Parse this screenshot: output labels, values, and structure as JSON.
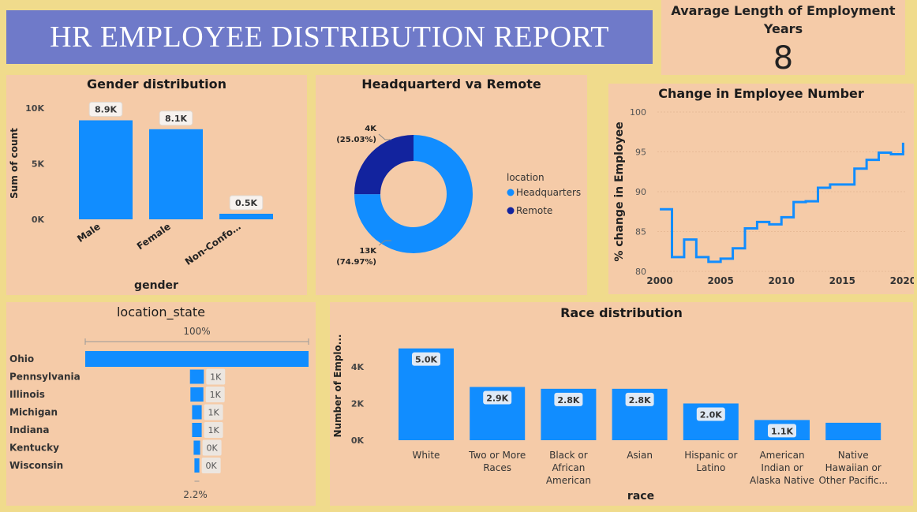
{
  "report_title": "HR EMPLOYEE DISTRIBUTION REPORT",
  "kpi": {
    "label": "Avarage Length of Employment Years",
    "value": "8"
  },
  "colors": {
    "background": "#f0db8c",
    "panel": "#f5cba8",
    "banner": "#6f7ac9",
    "bar": "#118dff",
    "remote": "#12239e"
  },
  "chart_data": [
    {
      "id": "gender",
      "type": "bar",
      "title": "Gender distribution",
      "xlabel": "gender",
      "ylabel": "Sum of count",
      "categories": [
        "Male",
        "Female",
        "Non-Confo…"
      ],
      "values": [
        8900,
        8100,
        500
      ],
      "data_labels": [
        "8.9K",
        "8.1K",
        "0.5K"
      ],
      "ylim": [
        0,
        10000
      ],
      "yticks": [
        0,
        5000,
        10000
      ],
      "ytick_labels": [
        "0K",
        "5K",
        "10K"
      ]
    },
    {
      "id": "location",
      "type": "pie",
      "variant": "donut",
      "title": "Headquarterd va Remote",
      "legend_title": "location",
      "legend_position": "right",
      "slices": [
        {
          "name": "Headquarters",
          "value": 74.97,
          "label": "13K",
          "pct_label": "(74.97%)",
          "color": "#118dff"
        },
        {
          "name": "Remote",
          "value": 25.03,
          "label": "4K",
          "pct_label": "(25.03%)",
          "color": "#12239e"
        }
      ]
    },
    {
      "id": "employee-change",
      "type": "line",
      "variant": "step",
      "title": "Change in Employee Number",
      "xlabel": "",
      "ylabel": "% change in Employee",
      "x": [
        2000,
        2001,
        2002,
        2003,
        2004,
        2005,
        2006,
        2007,
        2008,
        2009,
        2010,
        2011,
        2012,
        2013,
        2014,
        2015,
        2016,
        2017,
        2018,
        2019,
        2020
      ],
      "values": [
        87.8,
        81.8,
        84,
        81.8,
        81.2,
        81.6,
        82.9,
        85.4,
        86.2,
        85.9,
        86.8,
        88.7,
        88.8,
        90.5,
        90.9,
        90.9,
        92.9,
        94,
        94.9,
        94.7,
        96
      ],
      "xlim": [
        1999.8,
        2020.3
      ],
      "ylim": [
        80,
        100
      ],
      "xticks": [
        2000,
        2005,
        2010,
        2015,
        2020
      ],
      "yticks": [
        80,
        85,
        90,
        95,
        100
      ],
      "grid": true
    },
    {
      "id": "state",
      "type": "bar",
      "orientation": "horizontal",
      "variant": "funnel",
      "title": "location_state",
      "categories": [
        "Ohio",
        "Pennsylvania",
        "Illinois",
        "Michigan",
        "Indiana",
        "Kentucky",
        "Wisconsin"
      ],
      "values": [
        100,
        6.2,
        5.8,
        4.3,
        4.3,
        2.9,
        2.2
      ],
      "data_labels": [
        "",
        "1K",
        "1K",
        "1K",
        "1K",
        "0K",
        "0K"
      ],
      "top_label": "100%",
      "bottom_label": "2.2%"
    },
    {
      "id": "race",
      "type": "bar",
      "title": "Race distribution",
      "xlabel": "race",
      "ylabel": "Number of Emplo...",
      "categories": [
        [
          "White"
        ],
        [
          "Two or More",
          "Races"
        ],
        [
          "Black or",
          "African",
          "American"
        ],
        [
          "Asian"
        ],
        [
          "Hispanic or",
          "Latino"
        ],
        [
          "American",
          "Indian or",
          "Alaska Native"
        ],
        [
          "Native",
          "Hawaiian or",
          "Other Pacific..."
        ]
      ],
      "values": [
        5000,
        2900,
        2800,
        2800,
        2000,
        1100,
        950
      ],
      "data_labels": [
        "5.0K",
        "2.9K",
        "2.8K",
        "2.8K",
        "2.0K",
        "1.1K",
        ""
      ],
      "ylim": [
        0,
        5500
      ],
      "yticks": [
        0,
        2000,
        4000
      ],
      "ytick_labels": [
        "0K",
        "2K",
        "4K"
      ]
    }
  ]
}
